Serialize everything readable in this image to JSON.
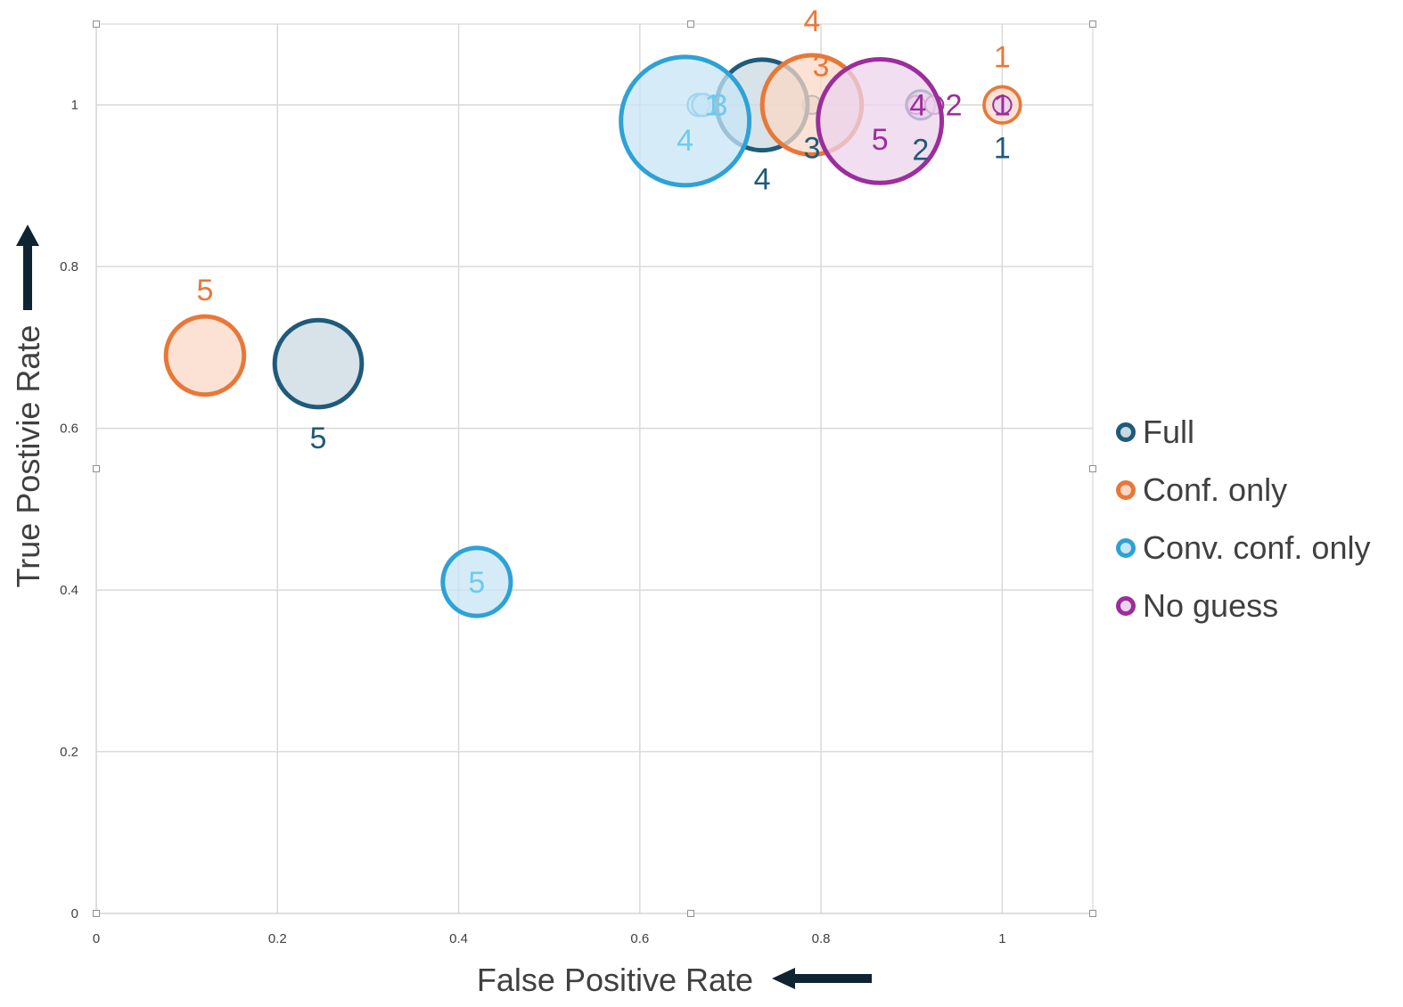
{
  "chart_data": {
    "type": "scatter",
    "subtype": "bubble",
    "xlabel": "False Positive Rate",
    "ylabel": "True Postivie Rate",
    "xlim": [
      0,
      1.1
    ],
    "ylim": [
      0,
      1.1
    ],
    "x_ticks": [
      "0",
      "0.2",
      "0.4",
      "0.6",
      "0.8",
      "1"
    ],
    "y_ticks": [
      "0",
      "0.2",
      "0.4",
      "0.6",
      "0.8",
      "1"
    ],
    "grid": true,
    "legend_position": "right",
    "series": [
      {
        "name": "Full",
        "color": "#1f5a7a",
        "fill": "#c9d9e0",
        "points": [
          {
            "label": "1",
            "x": 1.0,
            "y": 1.0,
            "size": 0.02
          },
          {
            "label": "2",
            "x": 0.91,
            "y": 1.0,
            "size": 0.05
          },
          {
            "label": "3",
            "x": 0.79,
            "y": 1.0,
            "size": 0.02
          },
          {
            "label": "4",
            "x": 0.735,
            "y": 1.0,
            "size": 0.5
          },
          {
            "label": "5",
            "x": 0.245,
            "y": 0.68,
            "size": 0.46
          }
        ]
      },
      {
        "name": "Conf. only",
        "color": "#e87838",
        "fill": "#f9d8c7",
        "points": [
          {
            "label": "1",
            "x": 1.0,
            "y": 1.0,
            "size": 0.08
          },
          {
            "label": "3",
            "x": 0.79,
            "y": 1.0,
            "size": 0.6
          },
          {
            "label": "5",
            "x": 0.12,
            "y": 0.69,
            "size": 0.37
          }
        ]
      },
      {
        "name": "Conv. conf. only",
        "color": "#2ea2d6",
        "fill": "#c7e6f5",
        "points": [
          {
            "label": "1",
            "x": 0.665,
            "y": 1.0,
            "size": 0.03
          },
          {
            "label": "3",
            "x": 0.67,
            "y": 1.0,
            "size": 0.03
          },
          {
            "label": "4",
            "x": 0.65,
            "y": 0.98,
            "size": 1.0
          },
          {
            "label": "5",
            "x": 0.42,
            "y": 0.41,
            "size": 0.28
          }
        ]
      },
      {
        "name": "No guess",
        "color": "#9c2e9c",
        "fill": "#ecd3ec",
        "points": [
          {
            "label": "1",
            "x": 1.0,
            "y": 1.0,
            "size": 0.02
          },
          {
            "label": "4",
            "x": 0.905,
            "y": 1.0,
            "size": 0.02
          },
          {
            "label": "2",
            "x": 0.925,
            "y": 1.0,
            "size": 0.02
          },
          {
            "label": "5",
            "x": 0.865,
            "y": 0.98,
            "size": 0.93
          }
        ]
      }
    ]
  }
}
